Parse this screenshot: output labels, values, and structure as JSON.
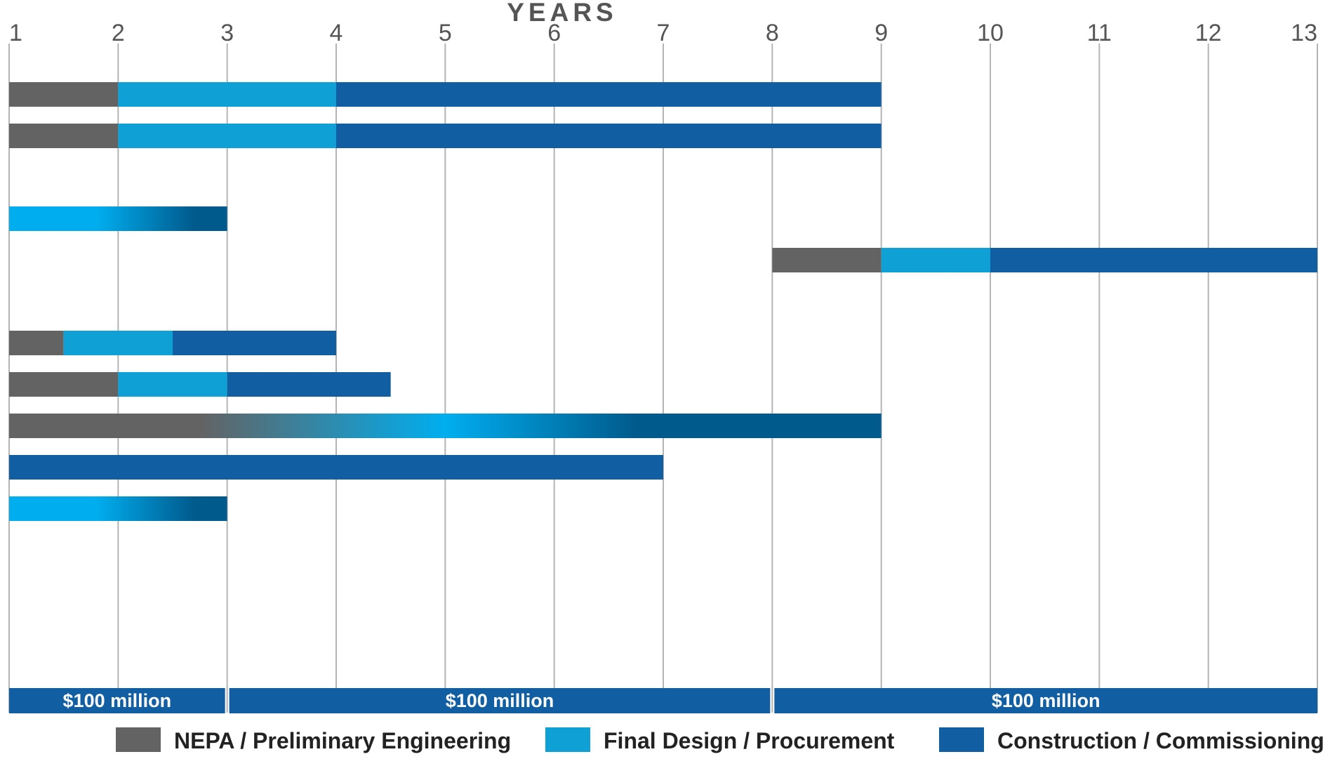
{
  "chart_data": {
    "type": "bar",
    "orientation": "horizontal-timeline",
    "axis_title": "YEARS",
    "x_ticks": [
      1,
      2,
      3,
      4,
      5,
      6,
      7,
      8,
      9,
      10,
      11,
      12,
      13
    ],
    "xlim": [
      1,
      13
    ],
    "grid": true,
    "colors": {
      "nepa": "#636363",
      "design": "#0fa1d5",
      "construction": "#125ea3",
      "gradient_light": "#00aeef",
      "gradient_dark": "#005a8c"
    },
    "legend": [
      {
        "key": "nepa",
        "label": "NEPA / Preliminary Engineering"
      },
      {
        "key": "design",
        "label": "Final Design / Procurement"
      },
      {
        "key": "construction",
        "label": "Construction / Commissioning"
      }
    ],
    "legend_position": "bottom",
    "rows": [
      {
        "segments": [
          {
            "phase": "nepa",
            "start": 1,
            "end": 2
          },
          {
            "phase": "design",
            "start": 2,
            "end": 4
          },
          {
            "phase": "construction",
            "start": 4,
            "end": 9
          }
        ]
      },
      {
        "segments": [
          {
            "phase": "nepa",
            "start": 1,
            "end": 2
          },
          {
            "phase": "design",
            "start": 2,
            "end": 4
          },
          {
            "phase": "construction",
            "start": 4,
            "end": 9
          }
        ]
      },
      {
        "segments": []
      },
      {
        "segments": [
          {
            "phase": "gradient-design-construction",
            "start": 1,
            "end": 3
          }
        ]
      },
      {
        "segments": [
          {
            "phase": "nepa",
            "start": 8,
            "end": 9
          },
          {
            "phase": "design",
            "start": 9,
            "end": 10
          },
          {
            "phase": "construction",
            "start": 10,
            "end": 13
          }
        ]
      },
      {
        "segments": []
      },
      {
        "segments": [
          {
            "phase": "nepa",
            "start": 1,
            "end": 1.5
          },
          {
            "phase": "design",
            "start": 1.5,
            "end": 2.5
          },
          {
            "phase": "construction",
            "start": 2.5,
            "end": 4
          }
        ]
      },
      {
        "segments": [
          {
            "phase": "nepa",
            "start": 1,
            "end": 2
          },
          {
            "phase": "design",
            "start": 2,
            "end": 3
          },
          {
            "phase": "construction",
            "start": 3,
            "end": 4.5
          }
        ]
      },
      {
        "segments": [
          {
            "phase": "gradient-all",
            "start": 1,
            "end": 9
          }
        ]
      },
      {
        "segments": [
          {
            "phase": "construction",
            "start": 1,
            "end": 7
          }
        ]
      },
      {
        "segments": [
          {
            "phase": "gradient-design-construction",
            "start": 1,
            "end": 3
          }
        ]
      }
    ],
    "funding_blocks": [
      {
        "label": "$100 million",
        "start": 1,
        "end": 3
      },
      {
        "label": "$100 million",
        "start": 3,
        "end": 8
      },
      {
        "label": "$100 million",
        "start": 8,
        "end": 13
      }
    ]
  }
}
